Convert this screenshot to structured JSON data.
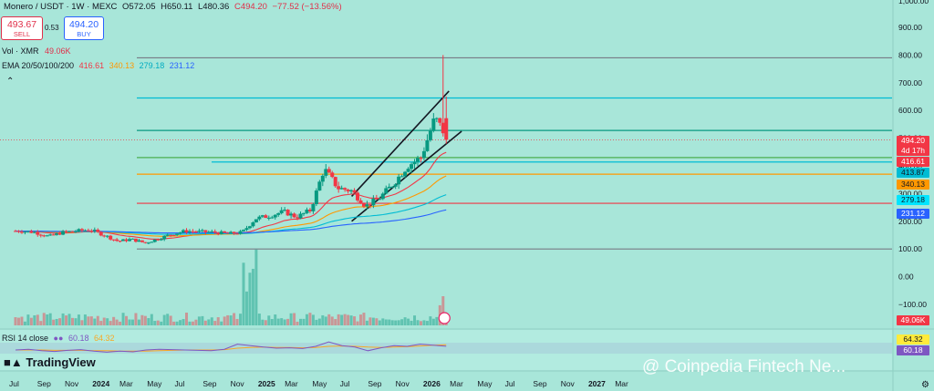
{
  "header": {
    "symbol": "Monero / USDT · 1W · MEXC",
    "open": "O572.05",
    "high": "H650.11",
    "low": "L480.36",
    "close": "C494.20",
    "change": "−77.52 (−13.56%)"
  },
  "trade": {
    "sell_price": "493.67",
    "sell_label": "SELL",
    "spread": "0.53",
    "buy_price": "494.20",
    "buy_label": "BUY"
  },
  "volume_legend": {
    "label": "Vol · XMR",
    "value": "49.06K"
  },
  "ema_legend": {
    "label": "EMA 20/50/100/200",
    "ema20": "416.61",
    "ema50": "340.13",
    "ema100": "279.18",
    "ema200": "231.12"
  },
  "rsi_legend": {
    "label": "RSI 14 close",
    "rsi": "60.18",
    "ma": "64.32"
  },
  "price_axis_ticks": [
    "900.00",
    "800.00",
    "700.00",
    "600.00",
    "500.00",
    "400.00",
    "300.00",
    "200.00",
    "100.00",
    "0.00",
    "−100.00"
  ],
  "price_axis_top_partial": "1,000.00",
  "price_labels": {
    "last_price": "494.20",
    "countdown": "4d 17h",
    "ema20": "416.61",
    "level_cyan": "413.87",
    "ema50": "340.13",
    "ema100": "279.18",
    "ema200": "231.12",
    "volume": "49.06K",
    "rsi_ma": "64.32",
    "rsi": "60.18"
  },
  "time_axis": [
    "Jul",
    "Sep",
    "Nov",
    "2024",
    "Mar",
    "May",
    "Jul",
    "Sep",
    "Nov",
    "2025",
    "Mar",
    "May",
    "Jul",
    "Sep",
    "Nov",
    "2026",
    "Mar",
    "May",
    "Jul",
    "Sep",
    "Nov",
    "2027",
    "Mar"
  ],
  "branding": {
    "logo": "TradingView",
    "watermark": "@ Coinpedia Fintech Ne..."
  },
  "colors": {
    "up": "#089981",
    "down": "#f23645",
    "ema20": "#f23645",
    "ema50": "#ff9800",
    "ema100": "#00bcd4",
    "ema200": "#2962ff",
    "background": "#a8e6d9"
  },
  "chart_data": {
    "type": "candlestick",
    "interval": "1W",
    "x_start": "2023-07",
    "x_end": "2027-04",
    "ylim": [
      -100,
      1000
    ],
    "horizontal_levels": [
      {
        "value": 790,
        "color": "#787b86"
      },
      {
        "value": 645,
        "color": "#00bcd4"
      },
      {
        "value": 528,
        "color": "#089981"
      },
      {
        "value": 430,
        "color": "#4caf50"
      },
      {
        "value": 413.87,
        "color": "#00bcd4"
      },
      {
        "value": 370,
        "color": "#ff9800"
      },
      {
        "value": 265,
        "color": "#f23645"
      },
      {
        "value": 100,
        "color": "#787b86"
      }
    ],
    "trend_channel": {
      "upper": [
        [
          "2025-07",
          290
        ],
        [
          "2026-02",
          670
        ]
      ],
      "lower": [
        [
          "2025-07",
          200
        ],
        [
          "2026-03",
          525
        ]
      ]
    },
    "monthly_close": [
      [
        "2023-07",
        165
      ],
      [
        "2023-08",
        160
      ],
      [
        "2023-09",
        145
      ],
      [
        "2023-10",
        160
      ],
      [
        "2023-11",
        165
      ],
      [
        "2023-12",
        170
      ],
      [
        "2024-01",
        150
      ],
      [
        "2024-02",
        128
      ],
      [
        "2024-03",
        135
      ],
      [
        "2024-04",
        122
      ],
      [
        "2024-05",
        138
      ],
      [
        "2024-06",
        155
      ],
      [
        "2024-07",
        165
      ],
      [
        "2024-08",
        162
      ],
      [
        "2024-09",
        160
      ],
      [
        "2024-10",
        155
      ],
      [
        "2024-11",
        160
      ],
      [
        "2024-12",
        210
      ],
      [
        "2025-01",
        220
      ],
      [
        "2025-02",
        235
      ],
      [
        "2025-03",
        215
      ],
      [
        "2025-04",
        240
      ],
      [
        "2025-05",
        390
      ],
      [
        "2025-06",
        320
      ],
      [
        "2025-07",
        310
      ],
      [
        "2025-08",
        255
      ],
      [
        "2025-09",
        285
      ],
      [
        "2025-10",
        335
      ],
      [
        "2025-11",
        400
      ],
      [
        "2025-12",
        430
      ],
      [
        "2026-01",
        572
      ],
      [
        "2026-02",
        494.2
      ]
    ],
    "rsi_ylim": [
      0,
      100
    ],
    "rsi": [
      50,
      52,
      48,
      46,
      49,
      51,
      47,
      44,
      47,
      45,
      50,
      52,
      51,
      50,
      49,
      48,
      52,
      66,
      62,
      58,
      55,
      56,
      54,
      60,
      72,
      62,
      58,
      48,
      56,
      62,
      60,
      66,
      63,
      60.18
    ],
    "rsi_ma": [
      50,
      50,
      50,
      49,
      49,
      49,
      48,
      48,
      47,
      47,
      47,
      48,
      49,
      50,
      50,
      50,
      51,
      55,
      57,
      58,
      57,
      57,
      56,
      57,
      60,
      61,
      60,
      58,
      57,
      58,
      59,
      61,
      63,
      64.32
    ]
  }
}
